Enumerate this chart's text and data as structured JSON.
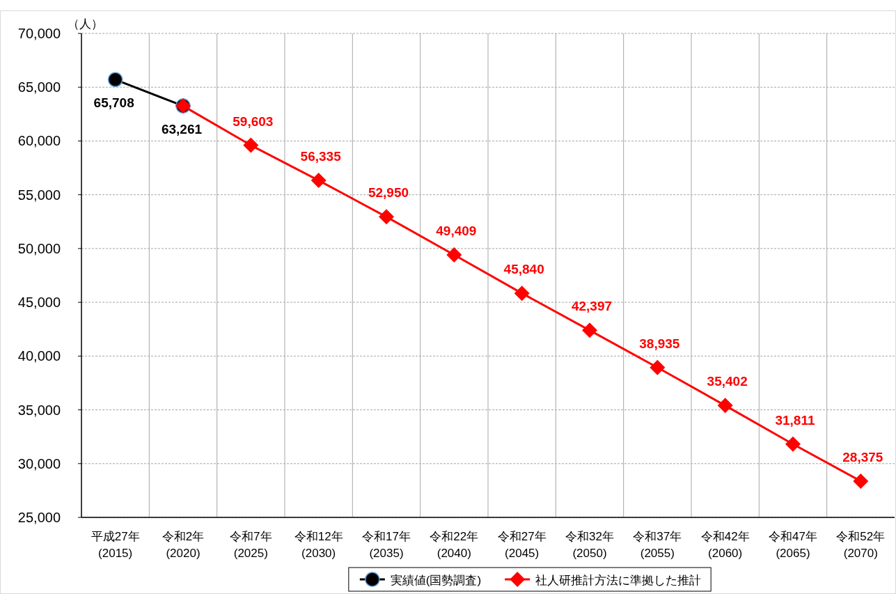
{
  "chart_data": {
    "type": "line",
    "ylabel": "（人）",
    "categories": [
      "平成27年\n(2015)",
      "令和2年\n(2020)",
      "令和7年\n(2025)",
      "令和12年\n(2030)",
      "令和17年\n(2035)",
      "令和22年\n(2040)",
      "令和27年\n(2045)",
      "令和32年\n(2050)",
      "令和37年\n(2055)",
      "令和42年\n(2060)",
      "令和47年\n(2065)",
      "令和52年\n(2070)"
    ],
    "series": [
      {
        "name": "実績値(国勢調査)",
        "color": "#000000",
        "marker": "circle",
        "values": [
          65708,
          63261,
          null,
          null,
          null,
          null,
          null,
          null,
          null,
          null,
          null,
          null
        ],
        "value_labels": [
          "65,708",
          "63,261",
          null,
          null,
          null,
          null,
          null,
          null,
          null,
          null,
          null,
          null
        ]
      },
      {
        "name": "社人研推計方法に準拠した推計",
        "color": "#ff0000",
        "marker": "diamond",
        "values": [
          null,
          63261,
          59603,
          56335,
          52950,
          49409,
          45840,
          42397,
          38935,
          35402,
          31811,
          28375
        ],
        "value_labels": [
          null,
          null,
          "59,603",
          "56,335",
          "52,950",
          "49,409",
          "45,840",
          "42,397",
          "38,935",
          "35,402",
          "31,811",
          "28,375"
        ]
      }
    ],
    "ylim": [
      25000,
      70000
    ],
    "yticks": [
      {
        "value": 25000,
        "label": "25,000"
      },
      {
        "value": 30000,
        "label": "30,000"
      },
      {
        "value": 35000,
        "label": "35,000"
      },
      {
        "value": 40000,
        "label": "40,000"
      },
      {
        "value": 45000,
        "label": "45,000"
      },
      {
        "value": 50000,
        "label": "50,000"
      },
      {
        "value": 55000,
        "label": "55,000"
      },
      {
        "value": 60000,
        "label": "60,000"
      },
      {
        "value": 65000,
        "label": "65,000"
      },
      {
        "value": 70000,
        "label": "70,000"
      }
    ],
    "grid": true,
    "legend": "bottom"
  }
}
